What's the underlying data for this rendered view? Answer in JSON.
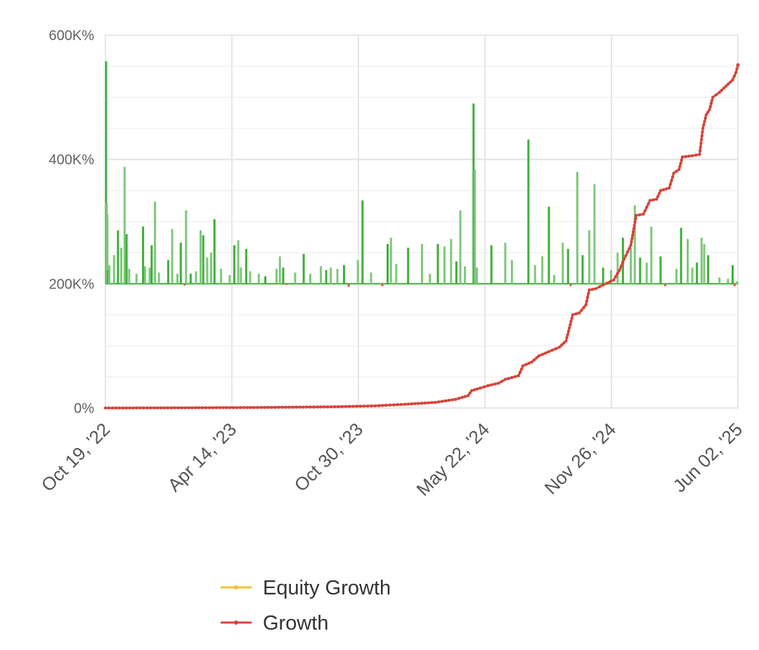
{
  "chart_data": {
    "type": "bar+line",
    "title": "",
    "xlabel": "",
    "ylabel": "",
    "x_ticks": [
      "Oct 19, '22",
      "Apr 14, '23",
      "Oct 30, '23",
      "May 22, '24",
      "Nov 26, '24",
      "Jun 02, '25"
    ],
    "x_range": [
      "2022-10-19",
      "2025-06-02"
    ],
    "y_ticks": [
      "0%",
      "200K%",
      "400K%",
      "600K%"
    ],
    "ylim": [
      0,
      600000
    ],
    "bar_baseline": 200000,
    "grid": true,
    "legend_position": "bottom",
    "legend": [
      "Equity Growth",
      "Growth"
    ],
    "colors": {
      "equity_growth": "#f2c230",
      "growth": "#d5453a",
      "bar_positive": "#7ec87a",
      "bar_positive_dark": "#3fae3a",
      "bar_negative": "#e05a4a",
      "grid": "#e6e6e6"
    },
    "series": [
      {
        "name": "Growth",
        "type": "line",
        "points": [
          [
            "2022-10-19",
            0
          ],
          [
            "2023-02-01",
            300
          ],
          [
            "2023-06-01",
            800
          ],
          [
            "2023-10-01",
            2000
          ],
          [
            "2023-12-01",
            3500
          ],
          [
            "2024-01-15",
            6000
          ],
          [
            "2024-03-01",
            9000
          ],
          [
            "2024-04-01",
            14000
          ],
          [
            "2024-04-20",
            20000
          ],
          [
            "2024-04-25",
            28000
          ],
          [
            "2024-05-08",
            32000
          ],
          [
            "2024-05-20",
            36000
          ],
          [
            "2024-06-05",
            40000
          ],
          [
            "2024-06-15",
            46000
          ],
          [
            "2024-07-05",
            52000
          ],
          [
            "2024-07-12",
            68000
          ],
          [
            "2024-07-25",
            74000
          ],
          [
            "2024-08-05",
            84000
          ],
          [
            "2024-08-25",
            93000
          ],
          [
            "2024-09-05",
            98000
          ],
          [
            "2024-09-15",
            108000
          ],
          [
            "2024-09-25",
            150000
          ],
          [
            "2024-10-05",
            153000
          ],
          [
            "2024-10-15",
            166000
          ],
          [
            "2024-10-20",
            190000
          ],
          [
            "2024-10-30",
            192000
          ],
          [
            "2024-11-10",
            198000
          ],
          [
            "2024-11-26",
            206000
          ],
          [
            "2024-12-05",
            222000
          ],
          [
            "2024-12-12",
            240000
          ],
          [
            "2024-12-22",
            262000
          ],
          [
            "2024-12-30",
            310000
          ],
          [
            "2025-01-10",
            312000
          ],
          [
            "2025-01-20",
            334000
          ],
          [
            "2025-01-30",
            336000
          ],
          [
            "2025-02-05",
            350000
          ],
          [
            "2025-02-18",
            354000
          ],
          [
            "2025-02-25",
            378000
          ],
          [
            "2025-03-05",
            384000
          ],
          [
            "2025-03-10",
            404000
          ],
          [
            "2025-03-25",
            406000
          ],
          [
            "2025-04-05",
            408000
          ],
          [
            "2025-04-10",
            450000
          ],
          [
            "2025-04-15",
            472000
          ],
          [
            "2025-04-20",
            480000
          ],
          [
            "2025-04-25",
            500000
          ],
          [
            "2025-05-05",
            508000
          ],
          [
            "2025-05-15",
            518000
          ],
          [
            "2025-05-25",
            528000
          ],
          [
            "2025-05-30",
            540000
          ],
          [
            "2025-06-02",
            552000
          ]
        ]
      },
      {
        "name": "Equity Growth",
        "type": "line",
        "points": []
      },
      {
        "type": "bar",
        "baseline": 200000,
        "bars": [
          [
            "2022-10-20",
            558000
          ],
          [
            "2022-10-21",
            330000
          ],
          [
            "2022-10-22",
            312000
          ],
          [
            "2022-10-23",
            222000
          ],
          [
            "2022-10-25",
            230000
          ],
          [
            "2022-11-01",
            246000
          ],
          [
            "2022-11-07",
            286000
          ],
          [
            "2022-11-12",
            258000
          ],
          [
            "2022-11-17",
            388000
          ],
          [
            "2022-11-20",
            280000
          ],
          [
            "2022-11-24",
            224000
          ],
          [
            "2022-12-05",
            216000
          ],
          [
            "2022-12-15",
            292000
          ],
          [
            "2022-12-18",
            228000
          ],
          [
            "2022-12-25",
            226000
          ],
          [
            "2022-12-28",
            262000
          ],
          [
            "2023-01-02",
            332000
          ],
          [
            "2023-01-08",
            218000
          ],
          [
            "2023-01-22",
            238000
          ],
          [
            "2023-01-28",
            288000
          ],
          [
            "2023-02-05",
            216000
          ],
          [
            "2023-02-10",
            266000
          ],
          [
            "2023-02-16",
            197000
          ],
          [
            "2023-02-18",
            318000
          ],
          [
            "2023-02-25",
            216000
          ],
          [
            "2023-03-05",
            220000
          ],
          [
            "2023-03-12",
            286000
          ],
          [
            "2023-03-16",
            278000
          ],
          [
            "2023-03-22",
            242000
          ],
          [
            "2023-03-28",
            250000
          ],
          [
            "2023-04-02",
            304000
          ],
          [
            "2023-04-12",
            224000
          ],
          [
            "2023-04-25",
            214000
          ],
          [
            "2023-05-02",
            262000
          ],
          [
            "2023-05-08",
            270000
          ],
          [
            "2023-05-12",
            226000
          ],
          [
            "2023-05-20",
            256000
          ],
          [
            "2023-05-26",
            220000
          ],
          [
            "2023-06-08",
            216000
          ],
          [
            "2023-06-18",
            212000
          ],
          [
            "2023-07-05",
            224000
          ],
          [
            "2023-07-10",
            244000
          ],
          [
            "2023-07-15",
            226000
          ],
          [
            "2023-07-20",
            198000
          ],
          [
            "2023-08-02",
            218000
          ],
          [
            "2023-08-15",
            248000
          ],
          [
            "2023-08-25",
            216000
          ],
          [
            "2023-09-10",
            228000
          ],
          [
            "2023-09-18",
            222000
          ],
          [
            "2023-09-25",
            226000
          ],
          [
            "2023-10-05",
            224000
          ],
          [
            "2023-10-15",
            230000
          ],
          [
            "2023-10-22",
            195000
          ],
          [
            "2023-11-05",
            238000
          ],
          [
            "2023-11-12",
            334000
          ],
          [
            "2023-11-25",
            218000
          ],
          [
            "2023-12-12",
            196000
          ],
          [
            "2023-12-20",
            264000
          ],
          [
            "2023-12-25",
            274000
          ],
          [
            "2024-01-02",
            232000
          ],
          [
            "2024-01-20",
            258000
          ],
          [
            "2024-02-10",
            264000
          ],
          [
            "2024-02-22",
            216000
          ],
          [
            "2024-03-05",
            264000
          ],
          [
            "2024-03-15",
            260000
          ],
          [
            "2024-03-25",
            272000
          ],
          [
            "2024-04-02",
            236000
          ],
          [
            "2024-04-08",
            318000
          ],
          [
            "2024-04-15",
            228000
          ],
          [
            "2024-04-28",
            490000
          ],
          [
            "2024-04-30",
            384000
          ],
          [
            "2024-05-03",
            226000
          ],
          [
            "2024-05-25",
            262000
          ],
          [
            "2024-06-15",
            266000
          ],
          [
            "2024-06-25",
            238000
          ],
          [
            "2024-07-20",
            432000
          ],
          [
            "2024-07-30",
            230000
          ],
          [
            "2024-08-10",
            244000
          ],
          [
            "2024-08-20",
            324000
          ],
          [
            "2024-08-28",
            214000
          ],
          [
            "2024-09-10",
            266000
          ],
          [
            "2024-09-18",
            256000
          ],
          [
            "2024-09-22",
            196000
          ],
          [
            "2024-10-02",
            380000
          ],
          [
            "2024-10-10",
            246000
          ],
          [
            "2024-10-20",
            286000
          ],
          [
            "2024-10-28",
            360000
          ],
          [
            "2024-11-10",
            226000
          ],
          [
            "2024-11-22",
            222000
          ],
          [
            "2024-12-02",
            250000
          ],
          [
            "2024-12-10",
            274000
          ],
          [
            "2024-12-22",
            258000
          ],
          [
            "2024-12-28",
            326000
          ],
          [
            "2025-01-05",
            242000
          ],
          [
            "2025-01-15",
            234000
          ],
          [
            "2025-01-22",
            292000
          ],
          [
            "2025-02-05",
            244000
          ],
          [
            "2025-02-12",
            196000
          ],
          [
            "2025-03-01",
            224000
          ],
          [
            "2025-03-08",
            290000
          ],
          [
            "2025-03-18",
            272000
          ],
          [
            "2025-03-25",
            226000
          ],
          [
            "2025-04-01",
            234000
          ],
          [
            "2025-04-08",
            274000
          ],
          [
            "2025-04-12",
            264000
          ],
          [
            "2025-04-18",
            246000
          ],
          [
            "2025-05-05",
            210000
          ],
          [
            "2025-05-18",
            208000
          ],
          [
            "2025-05-25",
            230000
          ],
          [
            "2025-05-28",
            196000
          ],
          [
            "2025-06-01",
            204000
          ]
        ]
      }
    ]
  }
}
